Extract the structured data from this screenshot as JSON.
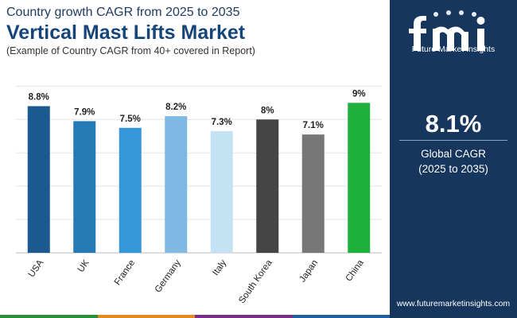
{
  "header": {
    "subtitle": "Country growth CAGR from 2025 to 2035",
    "title": "Vertical Mast Lifts Market",
    "note": "(Example of Country CAGR from 40+ covered in Report)"
  },
  "sidebar": {
    "logo_text": "Future Market Insights",
    "value": "8.1%",
    "label": "Global CAGR",
    "period": "(2025 to 2035)",
    "website": "www.futuremarketinsights.com"
  },
  "colors": {
    "sidebar_bg": "#17365d",
    "bars": [
      "#1a5a8e",
      "#2579b5",
      "#3597d8",
      "#7fb8e3",
      "#c5e2f4",
      "#444444",
      "#777777",
      "#1fb13c"
    ],
    "bottom_bar": [
      "#2a8f3b",
      "#e38a22",
      "#7a2d8a",
      "#1f5f9e"
    ]
  },
  "chart_data": {
    "type": "bar",
    "categories": [
      "USA",
      "UK",
      "France",
      "Germany",
      "Italy",
      "South Korea",
      "Japan",
      "China"
    ],
    "values": [
      8.8,
      7.9,
      7.5,
      8.2,
      7.3,
      8.0,
      7.1,
      9.0
    ],
    "labels": [
      "8.8%",
      "7.9%",
      "7.5%",
      "8.2%",
      "7.3%",
      "8%",
      "7.1%",
      "9%"
    ],
    "ylim": [
      0,
      10.4
    ],
    "grid": true,
    "title": "",
    "xlabel": "",
    "ylabel": ""
  }
}
